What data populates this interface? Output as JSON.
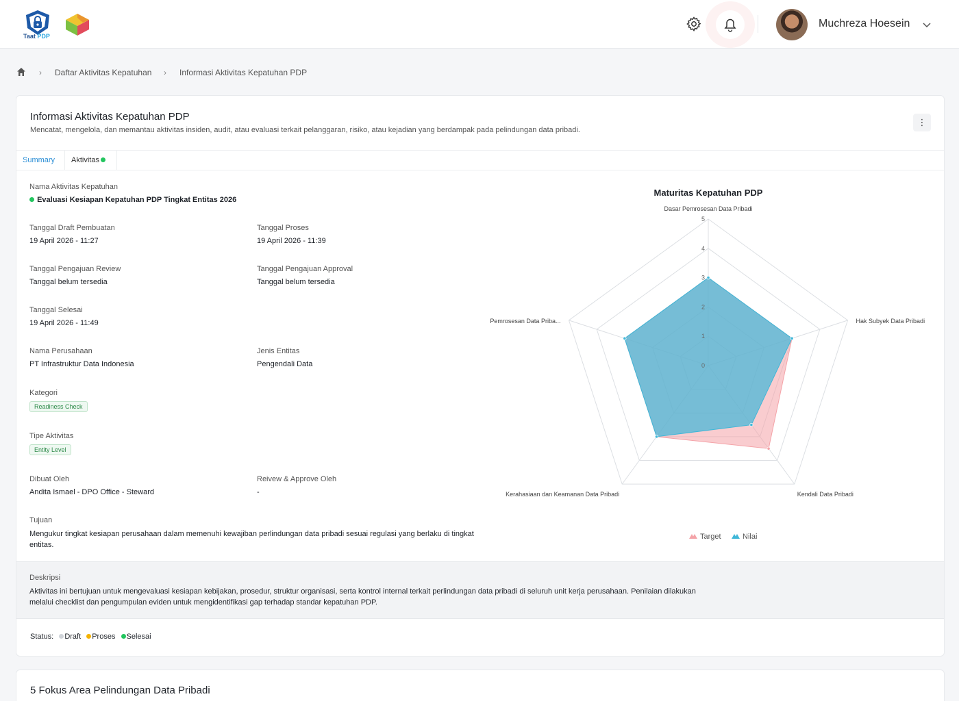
{
  "header": {
    "logo_text_a": "Taat",
    "logo_text_b": "PDP",
    "user_name": "Muchreza Hoesein"
  },
  "breadcrumb": {
    "items": [
      "Daftar Aktivitas Kepatuhan",
      "Informasi Aktivitas Kepatuhan PDP"
    ]
  },
  "card": {
    "title": "Informasi Aktivitas Kepatuhan PDP",
    "subtitle": "Mencatat, mengelola, dan memantau aktivitas insiden, audit, atau evaluasi terkait pelanggaran, risiko, atau kejadian yang berdampak pada pelindungan data pribadi.",
    "menu_glyph": "⋮",
    "tabs": [
      {
        "label": "Summary",
        "active": true
      },
      {
        "label": "Aktivitas",
        "active": false
      }
    ]
  },
  "fields": {
    "nama_label": "Nama Aktivitas Kepatuhan",
    "nama_value": "Evaluasi Kesiapan Kepatuhan PDP Tingkat Entitas 2026",
    "draft_label": "Tanggal Draft Pembuatan",
    "draft_value": "19 April 2026 - 11:27",
    "proses_label": "Tanggal Proses",
    "proses_value": "19 April 2026 - 11:39",
    "review_label": "Tanggal Pengajuan Review",
    "review_value": "Tanggal belum tersedia",
    "approval_label": "Tanggal Pengajuan Approval",
    "approval_value": "Tanggal belum tersedia",
    "selesai_label": "Tanggal Selesai",
    "selesai_value": "19 April 2026 - 11:49",
    "perusahaan_label": "Nama Perusahaan",
    "perusahaan_value": "PT Infrastruktur Data Indonesia",
    "entitas_label": "Jenis Entitas",
    "entitas_value": "Pengendali Data",
    "kategori_label": "Kategori",
    "kategori_value": "Readiness Check",
    "tipe_label": "Tipe Aktivitas",
    "tipe_value": "Entity Level",
    "dibuat_label": "Dibuat Oleh",
    "dibuat_value": "Andita Ismael - DPO Office - Steward",
    "approve_label": "Reivew & Approve Oleh",
    "approve_value": "-",
    "tujuan_label": "Tujuan",
    "tujuan_value": "Mengukur tingkat kesiapan perusahaan dalam memenuhi kewajiban perlindungan data pribadi sesuai regulasi yang berlaku di tingkat entitas."
  },
  "deskripsi": {
    "label": "Deskripsi",
    "text": "Aktivitas ini bertujuan untuk mengevaluasi kesiapan kebijakan, prosedur, struktur organisasi, serta kontrol internal terkait perlindungan data pribadi di seluruh unit kerja perusahaan. Penilaian dilakukan melalui checklist dan pengumpulan eviden untuk mengidentifikasi gap terhadap standar kepatuhan PDP."
  },
  "status": {
    "label": "Status:",
    "items": [
      "Draft",
      "Proses",
      "Selesai"
    ],
    "colors": [
      "#d0d4d9",
      "#f5b301",
      "#22c55e"
    ]
  },
  "chart_data": {
    "type": "radar",
    "title": "Maturitas Kepatuhan PDP",
    "axes": [
      "Dasar Pemrosesan Data Pribadi",
      "Hak Subyek Data Pribadi",
      "Kendali Data Pribadi",
      "Kerahasiaan dan Keamanan Data Pribadi",
      "Pemrosesan Data Priba..."
    ],
    "range": [
      0,
      5
    ],
    "ticks": [
      "0",
      "1",
      "2",
      "3",
      "4",
      "5"
    ],
    "series": [
      {
        "name": "Target",
        "values": [
          3,
          3,
          3.5,
          3,
          3
        ],
        "color": "#f4a3a8"
      },
      {
        "name": "Nilai",
        "values": [
          3,
          3,
          2.5,
          3,
          3
        ],
        "color": "#3fb7d8"
      }
    ],
    "legend_position": "bottom"
  },
  "section2": {
    "title": "5 Fokus Area Pelindungan Data Pribadi"
  }
}
